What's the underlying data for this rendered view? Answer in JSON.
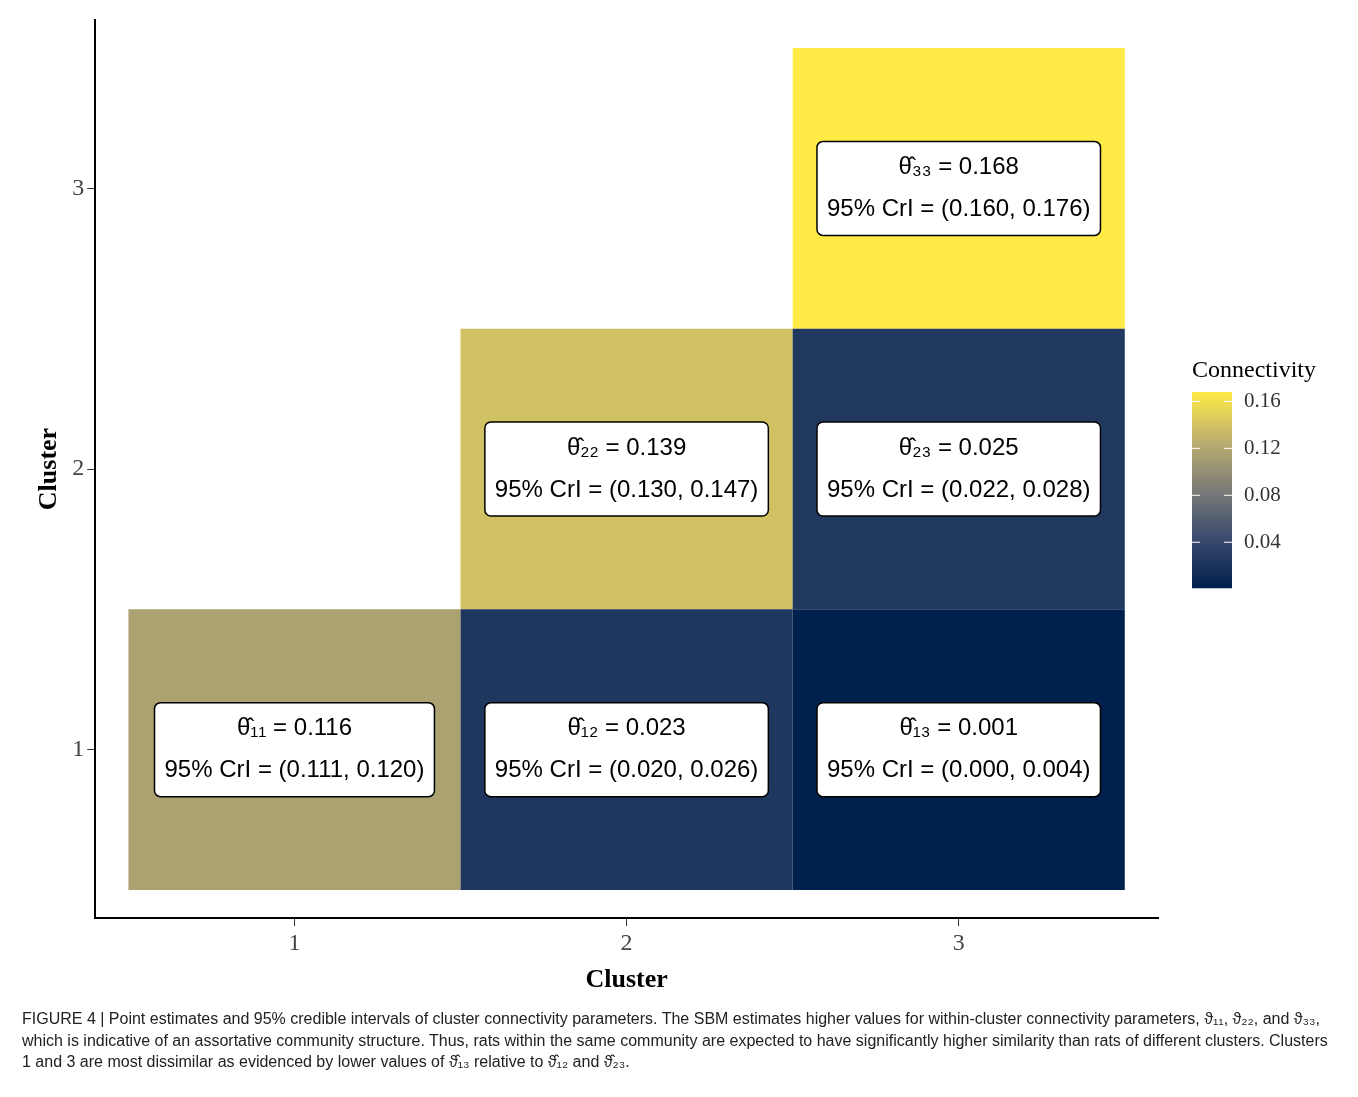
{
  "chart_data": {
    "type": "heatmap",
    "xlabel": "Cluster",
    "ylabel": "Cluster",
    "clabel": "Connectivity",
    "categories": [
      "1",
      "2",
      "3"
    ],
    "y_categories": [
      "3",
      "2",
      "1"
    ],
    "cells": [
      [
        null,
        null,
        0.168
      ],
      [
        null,
        0.139,
        0.025
      ],
      [
        0.116,
        0.023,
        0.001
      ]
    ],
    "cell_labels": [
      [
        null,
        null,
        "θ̂₃₃ = 0.168\n95% CrI = (0.160, 0.176)"
      ],
      [
        null,
        "θ̂₂₂ = 0.139\n95% CrI = (0.130, 0.147)",
        "θ̂₂₃ = 0.025\n95% CrI = (0.022, 0.028)"
      ],
      [
        "θ̂₁₁ = 0.116\n95% CrI = (0.111, 0.120)",
        "θ̂₁₂ = 0.023\n95% CrI = (0.020, 0.026)",
        "θ̂₁₃ = 0.001\n95% CrI = (0.000, 0.004)"
      ]
    ],
    "clim": [
      0.001,
      0.168
    ],
    "cticks": [
      0.04,
      0.08,
      0.12,
      0.16
    ],
    "annotations": [
      "FIGURE 4 | Point estimates and 95% credible intervals of cluster connectivity parameters. The SBM estimates higher values for within-cluster connectivity parameters, ϑ₁₁, ϑ₂₂, and ϑ₃₃, which is indicative of an assortative community structure. Thus, rats within the same community are expected to have significantly higher similarity than rats of different clusters. Clusters 1 and 3 are most dissimilar as evidenced by lower values of ϑ̂₁₃ relative to ϑ̂₁₂ and ϑ̂₂₃."
    ]
  }
}
